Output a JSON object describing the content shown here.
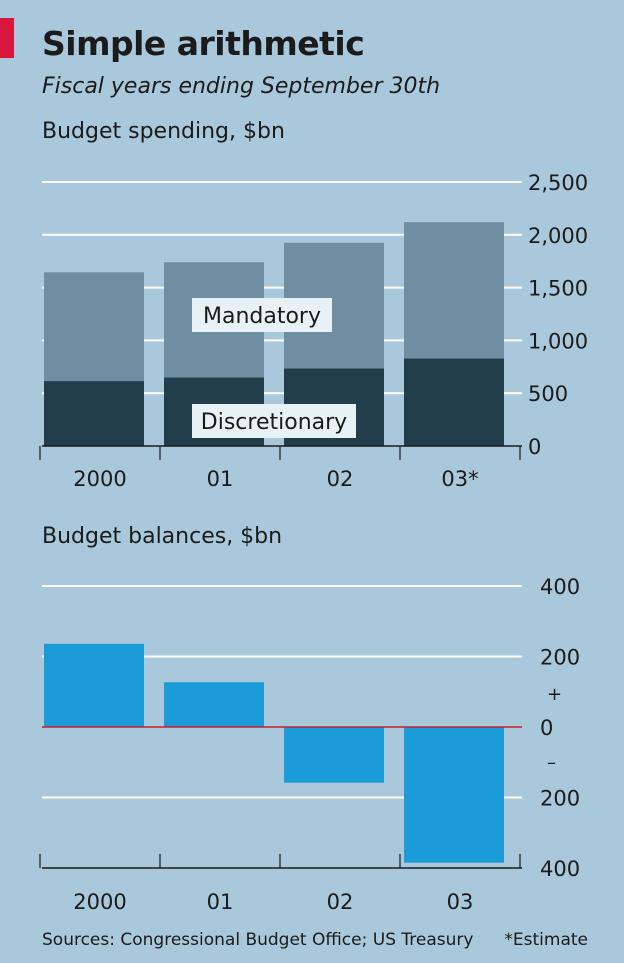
{
  "header": {
    "title": "Simple arithmetic",
    "subtitle": "Fiscal years ending September 30th"
  },
  "footer": {
    "source": "Sources: Congressional Budget Office; US Treasury",
    "note": "*Estimate"
  },
  "colors": {
    "background": "#a9c8db",
    "gridline": "#ffffff",
    "mandatory": "#6f8ea1",
    "discretionary": "#223d4c",
    "balance": "#1b9bd8",
    "zero_line": "#c8202f",
    "label_box": "#e8f1f6",
    "accent": "#d8153b"
  },
  "chart_data": [
    {
      "type": "bar",
      "stacked": true,
      "title": "Budget spending, $bn",
      "categories": [
        "2000",
        "01",
        "02",
        "03*"
      ],
      "series": [
        {
          "name": "Discretionary",
          "values": [
            615,
            650,
            735,
            830
          ]
        },
        {
          "name": "Mandatory",
          "values": [
            1030,
            1090,
            1190,
            1290
          ]
        }
      ],
      "ylim": [
        0,
        2500
      ],
      "yticks": [
        0,
        500,
        1000,
        1500,
        2000,
        2500
      ],
      "ytick_labels": [
        "0",
        "500",
        "1,000",
        "1,500",
        "2,000",
        "2,500"
      ],
      "grid": true
    },
    {
      "type": "bar",
      "title": "Budget balances, $bn",
      "categories": [
        "2000",
        "01",
        "02",
        "03"
      ],
      "series": [
        {
          "values": [
            236,
            127,
            -158,
            -385
          ]
        }
      ],
      "ylim": [
        -400,
        400
      ],
      "yticks": [
        -400,
        -200,
        0,
        200,
        400
      ],
      "ytick_labels": [
        "400",
        "200",
        "0",
        "200",
        "400"
      ],
      "sign_labels": [
        "+",
        "–"
      ],
      "grid": true
    }
  ]
}
